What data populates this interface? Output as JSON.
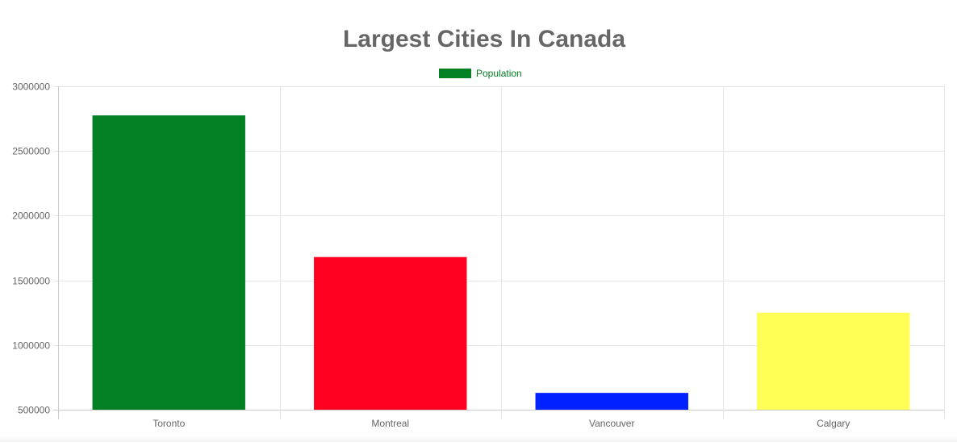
{
  "chart_data": {
    "type": "bar",
    "title": "Largest Cities In Canada",
    "categories": [
      "Toronto",
      "Montreal",
      "Vancouver",
      "Calgary"
    ],
    "series": [
      {
        "name": "Population",
        "values": [
          2775000,
          1680000,
          630000,
          1250000
        ]
      }
    ],
    "bar_colors": [
      "#037f24",
      "#ff001e",
      "#0022ff",
      "#ffff55"
    ],
    "legend": {
      "position": "top",
      "color": "#037f24",
      "label_color": "#037f24"
    },
    "ylim": [
      500000,
      3000000
    ],
    "yticks": [
      "3000000",
      "2500000",
      "2000000",
      "1500000",
      "1000000",
      "500000"
    ],
    "xlabel": "",
    "ylabel": "",
    "grid": true
  }
}
